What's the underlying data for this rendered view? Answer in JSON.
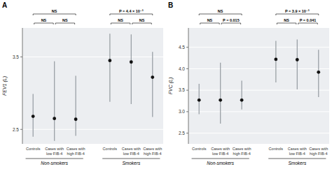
{
  "chart_data": [
    {
      "type": "errorbar",
      "title": "A",
      "ylabel": "FEV1 (L)",
      "ylim": [
        2.3,
        3.9
      ],
      "yticks": [
        2.5,
        3.5
      ],
      "grid": true,
      "color": "#111111",
      "groups": [
        {
          "name": "Non-smokers",
          "categories": [
            "Controls",
            "Cases with\nlow FIB-4",
            "Cases with\nhigh FIB-4"
          ],
          "values": [
            2.68,
            2.65,
            2.64
          ],
          "lows": [
            2.4,
            2.34,
            2.41
          ],
          "highs": [
            2.99,
            3.44,
            3.24
          ],
          "annotations": [
            {
              "text": "NS",
              "between": [
                "Controls",
                "Cases with\nhigh FIB-4"
              ]
            },
            {
              "text": "NS",
              "between": [
                "Controls",
                "Cases with\nlow FIB-4"
              ]
            },
            {
              "text": "NS",
              "between": [
                "Cases with\nlow FIB-4",
                "Cases with\nhigh FIB-4"
              ]
            }
          ]
        },
        {
          "name": "Smokers",
          "categories": [
            "Controls",
            "Cases with\nlow FIB-4",
            "Cases with\nhigh FIB-4"
          ],
          "values": [
            3.45,
            3.43,
            3.22
          ],
          "lows": [
            2.88,
            2.85,
            2.67
          ],
          "highs": [
            3.82,
            3.81,
            3.57
          ],
          "annotations": [
            {
              "text": "P = 4.4 × 10⁻³",
              "between": [
                "Controls",
                "Cases with\nhigh FIB-4"
              ]
            },
            {
              "text": "NS",
              "between": [
                "Controls",
                "Cases with\nlow FIB-4"
              ]
            },
            {
              "text": "NS",
              "between": [
                "Cases with\nlow FIB-4",
                "Cases with\nhigh FIB-4"
              ]
            }
          ]
        }
      ]
    },
    {
      "type": "errorbar",
      "title": "B",
      "ylabel": "FVC (L)",
      "ylim": [
        2.25,
        4.95
      ],
      "yticks": [
        2.5,
        {
          "value": 3.0,
          "label": "3.0"
        },
        3.5,
        {
          "value": 4.0,
          "label": "4.0"
        },
        4.5
      ],
      "grid": true,
      "color": "#111111",
      "groups": [
        {
          "name": "Non-smokers",
          "categories": [
            "Controls",
            "Cases with\nlow FIB-4",
            "Cases with\nhigh FIB-4"
          ],
          "values": [
            3.27,
            3.27,
            3.27
          ],
          "lows": [
            2.94,
            2.72,
            3.05
          ],
          "highs": [
            3.65,
            4.14,
            3.72
          ],
          "annotations": [
            {
              "text": "NS",
              "between": [
                "Controls",
                "Cases with\nhigh FIB-4"
              ]
            },
            {
              "text": "NS",
              "between": [
                "Controls",
                "Cases with\nlow FIB-4"
              ]
            },
            {
              "text": "P = 0.015",
              "between": [
                "Cases with\nlow FIB-4",
                "Cases with\nhigh FIB-4"
              ]
            }
          ]
        },
        {
          "name": "Smokers",
          "categories": [
            "Controls",
            "Cases with\nlow FIB-4",
            "Cases with\nhigh FIB-4"
          ],
          "values": [
            4.22,
            4.21,
            3.92
          ],
          "lows": [
            3.68,
            3.52,
            3.34
          ],
          "highs": [
            4.65,
            4.68,
            4.44
          ],
          "annotations": [
            {
              "text": "P = 3.9 × 10⁻³",
              "between": [
                "Controls",
                "Cases with\nhigh FIB-4"
              ]
            },
            {
              "text": "NS",
              "between": [
                "Controls",
                "Cases with\nlow FIB-4"
              ]
            },
            {
              "text": "P = 0.041",
              "between": [
                "Cases with\nlow FIB-4",
                "Cases with\nhigh FIB-4"
              ]
            }
          ]
        }
      ]
    }
  ]
}
